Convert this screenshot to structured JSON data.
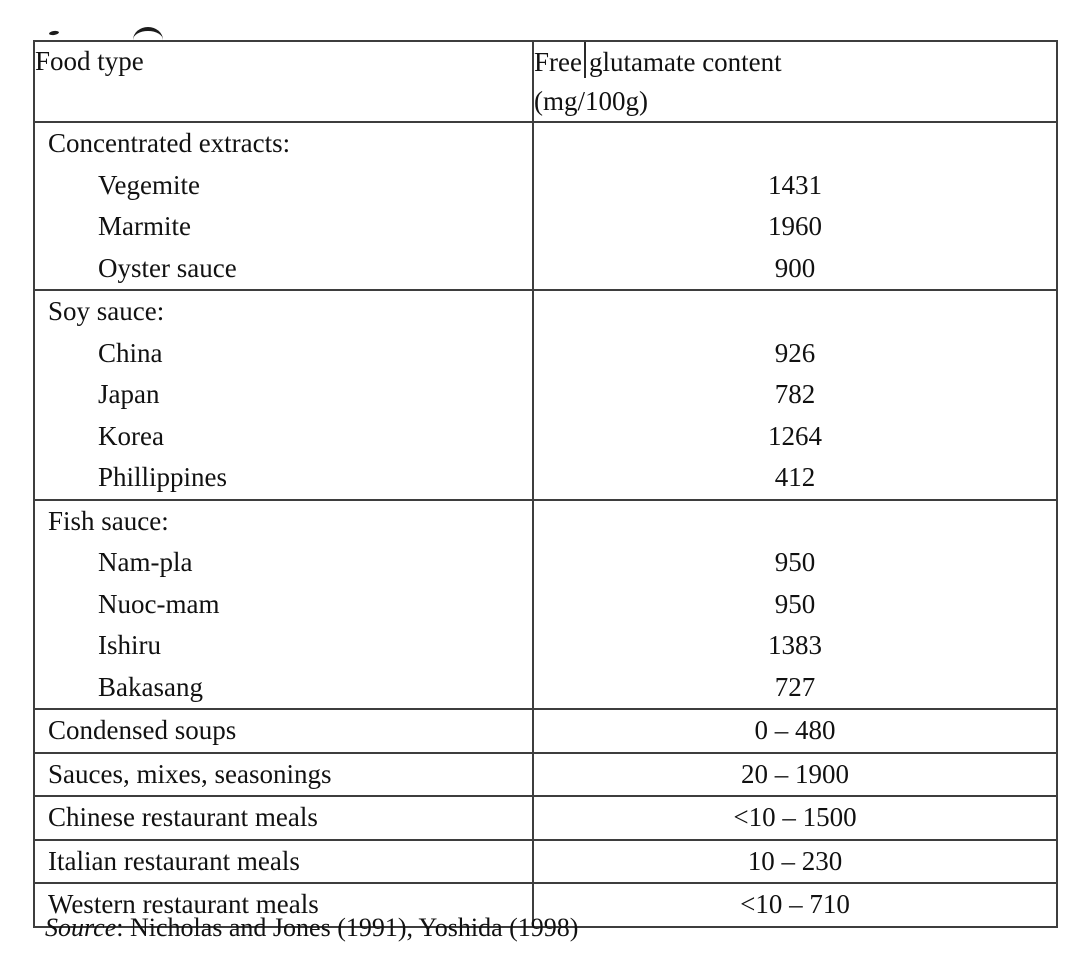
{
  "table": {
    "header": {
      "col1": "Food type",
      "col2_part1": "Free",
      "col2_part2": "glutamate content",
      "col2_line2": "(mg/100g)"
    },
    "groups": [
      {
        "type": "group",
        "lines": [
          {
            "label": "Concentrated extracts:",
            "indent": false,
            "value": ""
          },
          {
            "label": "Vegemite",
            "indent": true,
            "value": "1431"
          },
          {
            "label": "Marmite",
            "indent": true,
            "value": "1960"
          },
          {
            "label": "Oyster sauce",
            "indent": true,
            "value": "900"
          }
        ]
      },
      {
        "type": "group",
        "lines": [
          {
            "label": "Soy sauce:",
            "indent": false,
            "value": ""
          },
          {
            "label": "China",
            "indent": true,
            "value": "926"
          },
          {
            "label": "Japan",
            "indent": true,
            "value": "782"
          },
          {
            "label": "Korea",
            "indent": true,
            "value": "1264"
          },
          {
            "label": "Phillippines",
            "indent": true,
            "value": "412"
          }
        ]
      },
      {
        "type": "group",
        "lines": [
          {
            "label": "Fish sauce:",
            "indent": false,
            "value": ""
          },
          {
            "label": "Nam-pla",
            "indent": true,
            "value": "950"
          },
          {
            "label": "Nuoc-mam",
            "indent": true,
            "value": "950"
          },
          {
            "label": "Ishiru",
            "indent": true,
            "value": "1383"
          },
          {
            "label": "Bakasang",
            "indent": true,
            "value": "727"
          }
        ]
      },
      {
        "type": "single",
        "lines": [
          {
            "label": "Condensed soups",
            "indent": false,
            "value": "0 – 480"
          }
        ]
      },
      {
        "type": "single",
        "lines": [
          {
            "label": "Sauces, mixes, seasonings",
            "indent": false,
            "value": "20 – 1900"
          }
        ]
      },
      {
        "type": "single",
        "lines": [
          {
            "label": "Chinese restaurant meals",
            "indent": false,
            "value": "<10 – 1500"
          }
        ]
      },
      {
        "type": "single",
        "lines": [
          {
            "label": "Italian restaurant meals",
            "indent": false,
            "value": "10 – 230"
          }
        ]
      },
      {
        "type": "single",
        "lines": [
          {
            "label": "Western restaurant meals",
            "indent": false,
            "value": "<10 – 710"
          }
        ]
      }
    ],
    "source_label": "Source",
    "source_rest": ": Nicholas and Jones (1991), Yoshida (1998)"
  },
  "colors": {
    "border": "#3e3e3e",
    "text": "#111111",
    "background": "#ffffff"
  }
}
